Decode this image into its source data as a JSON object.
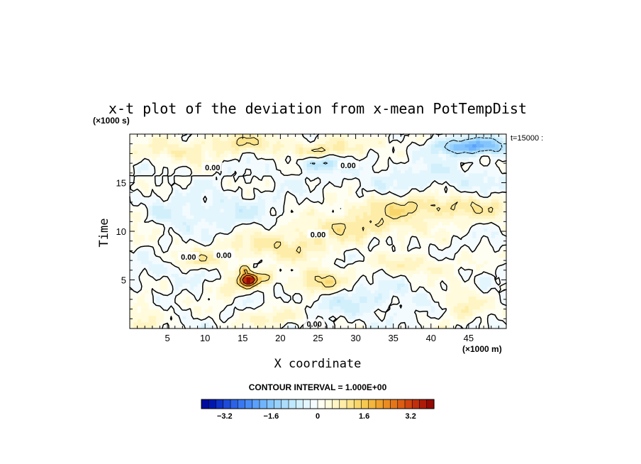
{
  "chart_data": {
    "type": "heatmap",
    "title": "x-t plot of the deviation from x-mean PotTempDist",
    "xlabel": "X coordinate",
    "ylabel": "Time",
    "x_unit": "(×1000 m)",
    "y_unit": "(×1000 s)",
    "xlim": [
      0,
      50
    ],
    "ylim": [
      0,
      20
    ],
    "x_ticks": [
      5,
      10,
      15,
      20,
      25,
      30,
      35,
      40,
      45
    ],
    "y_ticks": [
      5,
      10,
      15
    ],
    "time_label": "t=15000 :",
    "contour_interval_text": "CONTOUR INTERVAL = 1.000E+00",
    "contour_labels": [
      {
        "text": "0.00",
        "x": 11,
        "y": 16.5
      },
      {
        "text": "0.00",
        "x": 29,
        "y": 16.7
      },
      {
        "text": "0.00",
        "x": 25,
        "y": 9.6
      },
      {
        "text": "0.00",
        "x": 7.8,
        "y": 7.3
      },
      {
        "text": "0.00",
        "x": 12.5,
        "y": 7.5
      },
      {
        "text": "0.00",
        "x": 24.5,
        "y": 0.4
      }
    ],
    "colorbar": {
      "min": -4,
      "max": 4,
      "tick_values": [
        -3.2,
        -1.6,
        0,
        1.6,
        3.2
      ],
      "tick_labels": [
        "−3.2",
        "−1.6",
        "0",
        "1.6",
        "3.2"
      ],
      "colors": [
        "#000a9c",
        "#0018b0",
        "#0f32c8",
        "#1e4ad8",
        "#2c62e6",
        "#3a78ef",
        "#4a8cf5",
        "#5ca0f9",
        "#70b4fb",
        "#84c4fc",
        "#98d2fc",
        "#acdefc",
        "#bfe8fc",
        "#d2f0fc",
        "#e4f6fd",
        "#f3fbfe",
        "#fffef2",
        "#fffbdc",
        "#fff5c4",
        "#fdeda8",
        "#fbe38a",
        "#f8d66c",
        "#f6c852",
        "#f3b63e",
        "#f0a22e",
        "#eb8c22",
        "#e4761a",
        "#db5e14",
        "#cf4610",
        "#c0300c",
        "#ae1c08",
        "#960a04"
      ]
    },
    "field": {
      "x_domain": [
        0,
        50
      ],
      "y_domain": [
        0,
        20
      ],
      "nx": 100,
      "ny": 60,
      "components": [
        {
          "kind": "bump",
          "amp": -1.9,
          "x": 45,
          "y": 18.8,
          "sx": 4,
          "sy": 0.6
        },
        {
          "kind": "bump",
          "amp": 0.8,
          "x": 15,
          "y": 19.2,
          "sx": 5,
          "sy": 0.7
        },
        {
          "kind": "bump",
          "amp": 0.9,
          "x": 25,
          "y": 18.3,
          "sx": 3,
          "sy": 0.5
        },
        {
          "kind": "bump",
          "amp": -1.0,
          "x": 25,
          "y": 17.0,
          "sx": 2,
          "sy": 0.5
        },
        {
          "kind": "bump",
          "amp": 0.5,
          "x": 34,
          "y": 19.1,
          "sx": 5,
          "sy": 0.6
        },
        {
          "kind": "bump",
          "amp": 0.6,
          "x": 6,
          "y": 18.1,
          "sx": 4,
          "sy": 0.8
        },
        {
          "kind": "bump",
          "amp": 1.1,
          "x": 40,
          "y": 12.5,
          "sx": 8,
          "sy": 0.9
        },
        {
          "kind": "bump",
          "amp": 0.9,
          "x": 30,
          "y": 10.5,
          "sx": 6,
          "sy": 0.9
        },
        {
          "kind": "bump",
          "amp": 0.9,
          "x": 20,
          "y": 8.5,
          "sx": 5,
          "sy": 1.0
        },
        {
          "kind": "bump",
          "amp": 0.8,
          "x": 9,
          "y": 7.0,
          "sx": 3,
          "sy": 0.8
        },
        {
          "kind": "bump",
          "amp": 3.5,
          "x": 15.7,
          "y": 5.0,
          "sx": 0.7,
          "sy": 0.4
        },
        {
          "kind": "bump",
          "amp": 2.2,
          "x": 15.2,
          "y": 6.1,
          "sx": 0.5,
          "sy": 0.3
        },
        {
          "kind": "bump",
          "amp": 1.3,
          "x": 17,
          "y": 5.2,
          "sx": 1.6,
          "sy": 0.5
        },
        {
          "kind": "bump",
          "amp": 1.3,
          "x": 25,
          "y": 4.8,
          "sx": 2.5,
          "sy": 0.9
        },
        {
          "kind": "bump",
          "amp": 0.8,
          "x": 13,
          "y": 4.2,
          "sx": 1.5,
          "sy": 0.7
        },
        {
          "kind": "bump",
          "amp": 0.7,
          "x": 44,
          "y": 2.5,
          "sx": 2,
          "sy": 1.2
        },
        {
          "kind": "bump",
          "amp": 0.6,
          "x": 2,
          "y": 1.5,
          "sx": 1.5,
          "sy": 1.2
        },
        {
          "kind": "bump",
          "amp": 0.7,
          "x": 19,
          "y": 1.2,
          "sx": 3,
          "sy": 0.7
        },
        {
          "kind": "bump",
          "amp": 0.6,
          "x": 1,
          "y": 11.5,
          "sx": 1.5,
          "sy": 1.2
        },
        {
          "kind": "bump",
          "amp": 0.7,
          "x": 38,
          "y": 6.5,
          "sx": 4,
          "sy": 0.7
        },
        {
          "kind": "bump",
          "amp": -0.5,
          "x": 30,
          "y": 3.0,
          "sx": 6,
          "sy": 1.2
        },
        {
          "kind": "bump",
          "amp": -0.5,
          "x": 10,
          "y": 12.0,
          "sx": 8,
          "sy": 1.3
        },
        {
          "kind": "bump",
          "amp": -0.4,
          "x": 40,
          "y": 15.5,
          "sx": 8,
          "sy": 1.2
        },
        {
          "kind": "bump",
          "amp": -0.4,
          "x": 6,
          "y": 6.0,
          "sx": 5,
          "sy": 0.8
        },
        {
          "kind": "wave",
          "amp": 0.25,
          "kx": 0.5,
          "ky": 1.3
        },
        {
          "kind": "wave",
          "amp": 0.2,
          "kx": 1.1,
          "ky": 2.1
        },
        {
          "kind": "wave",
          "amp": 0.15,
          "kx": 2.3,
          "ky": 0.7
        },
        {
          "kind": "wave",
          "amp": 0.12,
          "kx": 3.7,
          "ky": 3.1
        }
      ]
    }
  }
}
